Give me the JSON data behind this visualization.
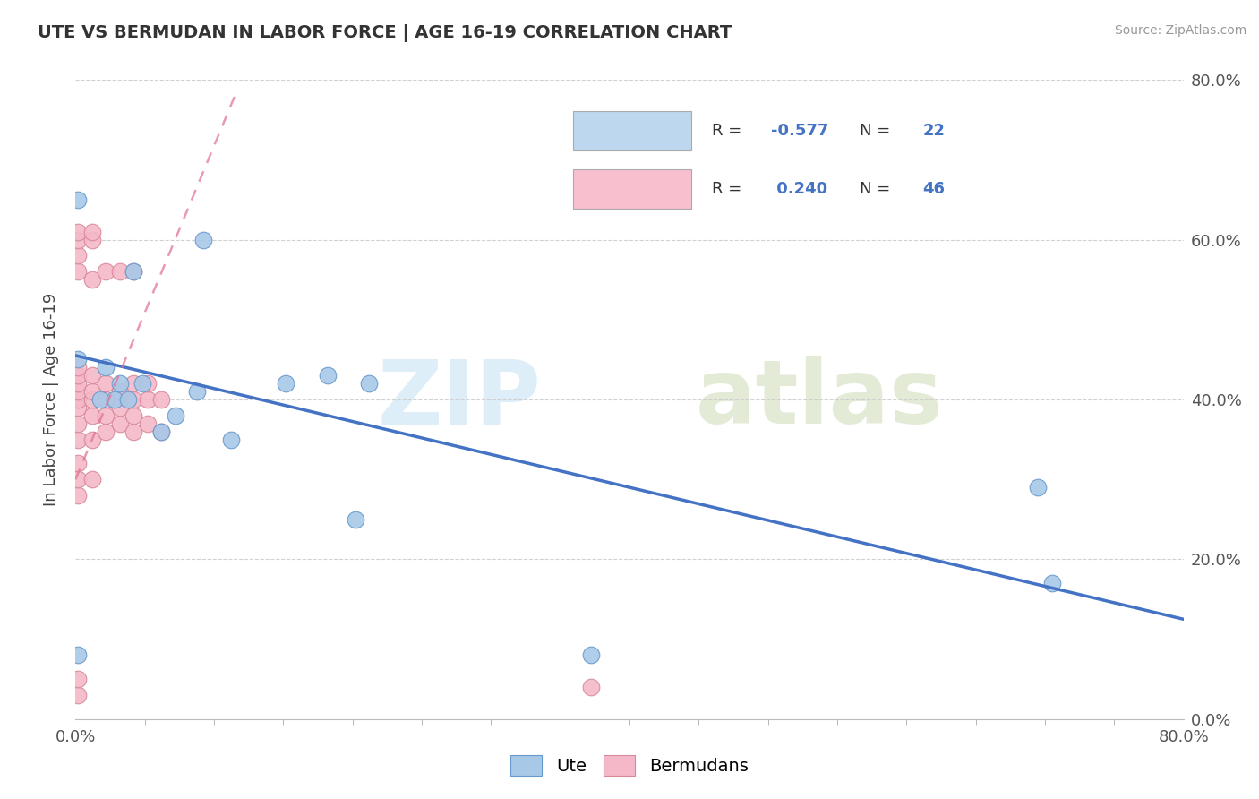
{
  "title": "UTE VS BERMUDAN IN LABOR FORCE | AGE 16-19 CORRELATION CHART",
  "source": "Source: ZipAtlas.com",
  "ylabel": "In Labor Force | Age 16-19",
  "ute_color": "#A8C8E8",
  "ute_color_edge": "#6699CC",
  "ute_line_color": "#4472C4",
  "bermudan_color": "#F4B8C8",
  "bermudan_color_edge": "#D88898",
  "bermudan_line_color": "#E07090",
  "legend_box_ute": "#BDD7EE",
  "legend_box_bermudan": "#F8C0CF",
  "R_ute": -0.577,
  "N_ute": 22,
  "R_bermudan": 0.24,
  "N_bermudan": 46,
  "xmin": 0.0,
  "xmax": 0.8,
  "ymin": 0.0,
  "ymax": 0.8,
  "blue_text_color": "#4472C4",
  "label_color": "#555555",
  "grid_color": "#CCCCCC",
  "ute_x": [
    0.002,
    0.002,
    0.002,
    0.018,
    0.022,
    0.028,
    0.032,
    0.038,
    0.042,
    0.048,
    0.062,
    0.072,
    0.088,
    0.092,
    0.112,
    0.152,
    0.182,
    0.202,
    0.212,
    0.372,
    0.695,
    0.705
  ],
  "ute_y": [
    0.08,
    0.45,
    0.65,
    0.4,
    0.44,
    0.4,
    0.42,
    0.4,
    0.56,
    0.42,
    0.36,
    0.38,
    0.41,
    0.6,
    0.35,
    0.42,
    0.43,
    0.25,
    0.42,
    0.08,
    0.29,
    0.17
  ],
  "bermudan_x": [
    0.002,
    0.002,
    0.002,
    0.002,
    0.002,
    0.002,
    0.002,
    0.002,
    0.002,
    0.002,
    0.002,
    0.002,
    0.002,
    0.002,
    0.002,
    0.002,
    0.002,
    0.012,
    0.012,
    0.012,
    0.012,
    0.012,
    0.012,
    0.012,
    0.012,
    0.012,
    0.022,
    0.022,
    0.022,
    0.022,
    0.022,
    0.032,
    0.032,
    0.032,
    0.032,
    0.042,
    0.042,
    0.042,
    0.042,
    0.042,
    0.052,
    0.052,
    0.052,
    0.062,
    0.062,
    0.372
  ],
  "bermudan_y": [
    0.03,
    0.05,
    0.28,
    0.3,
    0.32,
    0.35,
    0.37,
    0.39,
    0.4,
    0.41,
    0.42,
    0.43,
    0.44,
    0.56,
    0.58,
    0.6,
    0.61,
    0.3,
    0.35,
    0.38,
    0.4,
    0.41,
    0.43,
    0.55,
    0.6,
    0.61,
    0.36,
    0.38,
    0.4,
    0.42,
    0.56,
    0.37,
    0.39,
    0.41,
    0.56,
    0.36,
    0.38,
    0.4,
    0.42,
    0.56,
    0.37,
    0.4,
    0.42,
    0.36,
    0.4,
    0.04
  ],
  "ute_line_x0": 0.0,
  "ute_line_x1": 0.8,
  "ute_line_y0": 0.455,
  "ute_line_y1": 0.125,
  "berm_line_x0": 0.0,
  "berm_line_x1": 0.115,
  "berm_line_y0": 0.3,
  "berm_line_y1": 0.78
}
